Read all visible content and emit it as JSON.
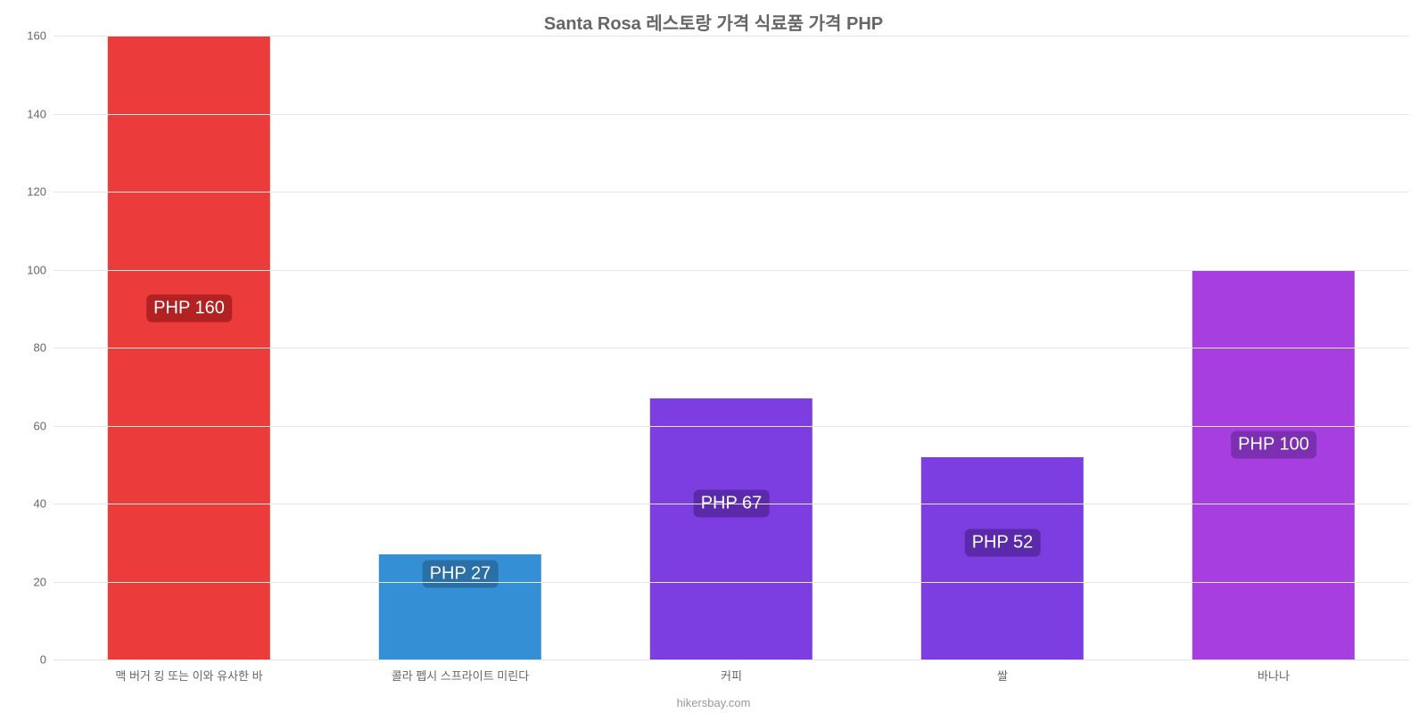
{
  "chart": {
    "type": "bar",
    "title": "Santa Rosa 레스토랑 가격 식료품 가격 PHP",
    "title_fontsize": 20,
    "title_color": "#666666",
    "background_color": "#ffffff",
    "grid_color": "#e5e5e5",
    "axis_label_color": "#666666",
    "axis_label_fontsize": 13,
    "ylim": [
      0,
      160
    ],
    "ytick_step": 20,
    "yticks": [
      0,
      20,
      40,
      60,
      80,
      100,
      120,
      140,
      160
    ],
    "bar_width_ratio": 0.6,
    "value_label_fontsize": 20,
    "value_label_text_color": "#ffffff",
    "value_label_radius": 6,
    "categories": [
      "맥 버거 킹 또는 이와 유사한 바",
      "콜라 펩시 스프라이트 미린다",
      "커피",
      "쌀",
      "바나나"
    ],
    "bars": [
      {
        "value": 160,
        "label": "PHP 160",
        "fill": "#eb3b3b",
        "badge_bg": "#b22222",
        "label_pos_value": 90
      },
      {
        "value": 27,
        "label": "PHP 27",
        "fill": "#348fd4",
        "badge_bg": "#2a6fa5",
        "label_pos_value": 22
      },
      {
        "value": 67,
        "label": "PHP 67",
        "fill": "#7c3ee0",
        "badge_bg": "#5b2aab",
        "label_pos_value": 40
      },
      {
        "value": 52,
        "label": "PHP 52",
        "fill": "#7c3ee0",
        "badge_bg": "#5b2aab",
        "label_pos_value": 30
      },
      {
        "value": 100,
        "label": "PHP 100",
        "fill": "#a63ee0",
        "badge_bg": "#7c2fb0",
        "label_pos_value": 55
      }
    ],
    "source_text": "hikersbay.com",
    "source_color": "#999999",
    "source_fontsize": 13
  }
}
